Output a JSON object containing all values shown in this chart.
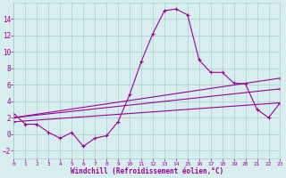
{
  "x": [
    0,
    1,
    2,
    3,
    4,
    5,
    6,
    7,
    8,
    9,
    10,
    11,
    12,
    13,
    14,
    15,
    16,
    17,
    18,
    19,
    20,
    21,
    22,
    23
  ],
  "line1": [
    2.5,
    1.2,
    1.2,
    0.2,
    -0.5,
    0.2,
    -1.5,
    -0.5,
    -0.2,
    1.5,
    4.8,
    8.8,
    12.2,
    15.0,
    15.2,
    14.5,
    9.0,
    7.5,
    7.5,
    6.2,
    6.1,
    3.0,
    2.0,
    3.8
  ],
  "line2_x": [
    0,
    23
  ],
  "line2_y": [
    2.0,
    6.8
  ],
  "line3_x": [
    0,
    23
  ],
  "line3_y": [
    2.0,
    5.5
  ],
  "line4_x": [
    0,
    23
  ],
  "line4_y": [
    1.5,
    3.8
  ],
  "color": "#990099",
  "bg_color": "#d8eeee",
  "grid_color": "#aacccc",
  "xlabel": "Windchill (Refroidissement éolien,°C)",
  "ylim": [
    -3,
    16
  ],
  "xlim": [
    0,
    23
  ],
  "yticks": [
    -2,
    0,
    2,
    4,
    6,
    8,
    10,
    12,
    14
  ],
  "xticks": [
    0,
    1,
    2,
    3,
    4,
    5,
    6,
    7,
    8,
    9,
    10,
    11,
    12,
    13,
    14,
    15,
    16,
    17,
    18,
    19,
    20,
    21,
    22,
    23
  ]
}
